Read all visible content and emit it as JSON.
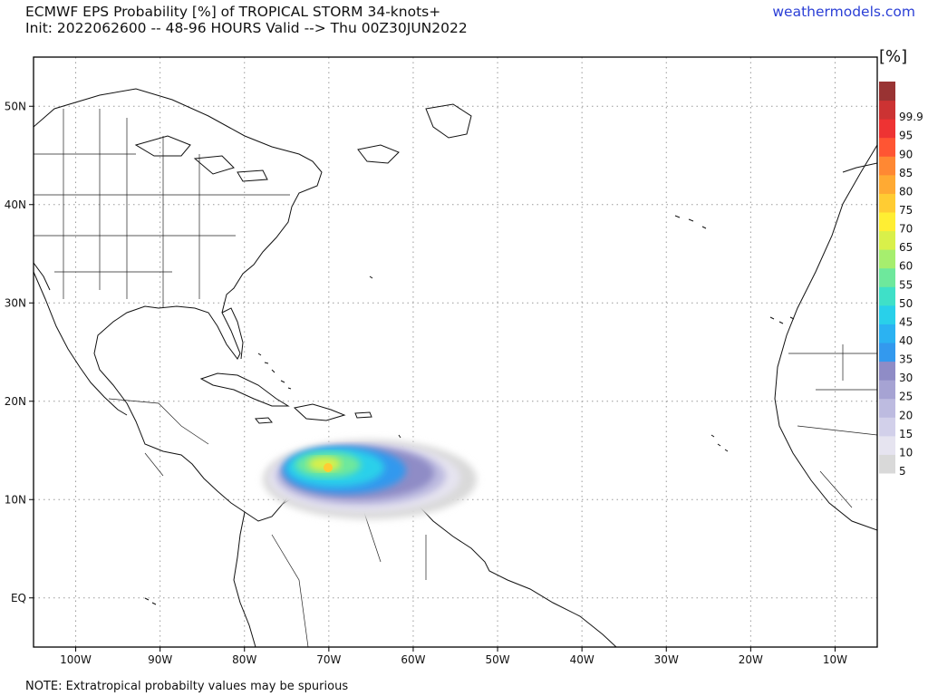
{
  "header": {
    "title_line1": "ECMWF EPS Probability [%] of TROPICAL STORM 34-knots+",
    "title_line2": "Init: 2022062600 -- 48-96 HOURS Valid --> Thu 00Z30JUN2022",
    "brand": "weathermodels.com"
  },
  "footer": {
    "note": "NOTE: Extratropical probabilty values may be spurious"
  },
  "map": {
    "lon_range": [
      -105,
      -5
    ],
    "lat_range": [
      -5,
      55
    ],
    "lon_ticks": [
      {
        "value": -100,
        "label": "100W"
      },
      {
        "value": -90,
        "label": "90W"
      },
      {
        "value": -80,
        "label": "80W"
      },
      {
        "value": -70,
        "label": "70W"
      },
      {
        "value": -60,
        "label": "60W"
      },
      {
        "value": -50,
        "label": "50W"
      },
      {
        "value": -40,
        "label": "40W"
      },
      {
        "value": -30,
        "label": "30W"
      },
      {
        "value": -20,
        "label": "20W"
      },
      {
        "value": -10,
        "label": "10W"
      }
    ],
    "lat_ticks": [
      {
        "value": 50,
        "label": "50N"
      },
      {
        "value": 40,
        "label": "40N"
      },
      {
        "value": 30,
        "label": "30N"
      },
      {
        "value": 20,
        "label": "20N"
      },
      {
        "value": 10,
        "label": "10N"
      },
      {
        "value": 0,
        "label": "EQ"
      }
    ]
  },
  "colorbar": {
    "unit_label": "[%]",
    "levels": [
      {
        "label": "5",
        "color": "#d9d9d9"
      },
      {
        "label": "10",
        "color": "#e6e4f0"
      },
      {
        "label": "15",
        "color": "#d2d0ea"
      },
      {
        "label": "20",
        "color": "#bdbbe0"
      },
      {
        "label": "25",
        "color": "#a6a3d3"
      },
      {
        "label": "30",
        "color": "#8f8cc6"
      },
      {
        "label": "35",
        "color": "#3399ee"
      },
      {
        "label": "40",
        "color": "#2bb2f2"
      },
      {
        "label": "45",
        "color": "#29d0ea"
      },
      {
        "label": "50",
        "color": "#3fe0c8"
      },
      {
        "label": "55",
        "color": "#6ee89c"
      },
      {
        "label": "60",
        "color": "#a6ee6e"
      },
      {
        "label": "65",
        "color": "#d9f04a"
      },
      {
        "label": "70",
        "color": "#ffee33"
      },
      {
        "label": "75",
        "color": "#ffcc33"
      },
      {
        "label": "80",
        "color": "#ffaa33"
      },
      {
        "label": "85",
        "color": "#ff8833"
      },
      {
        "label": "90",
        "color": "#ff5533"
      },
      {
        "label": "95",
        "color": "#ee3333"
      },
      {
        "label": "99.9",
        "color": "#cc3333"
      },
      {
        "label": "",
        "color": "#993333"
      }
    ]
  },
  "probability_blob": {
    "center_lon": -69,
    "center_lat": 13,
    "peak_value": 70
  }
}
